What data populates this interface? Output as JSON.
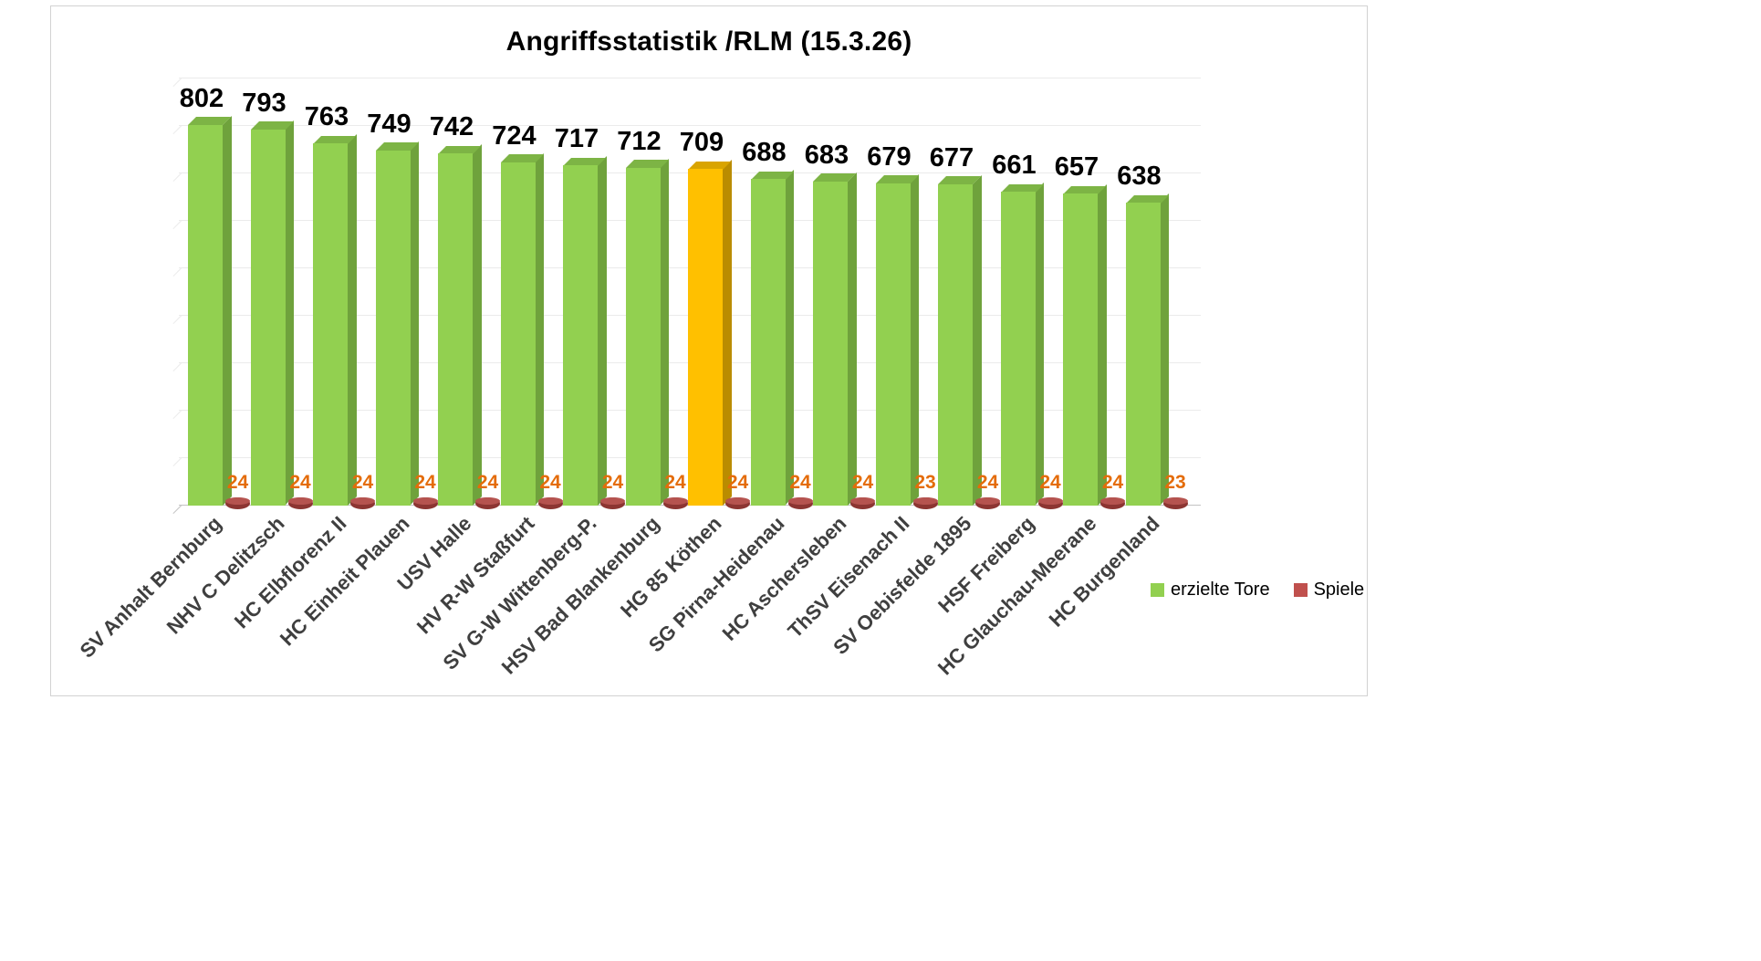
{
  "title": "Angriffsstatistik /RLM (15.3.26)",
  "legend": [
    {
      "label": "erzielte Tore",
      "color": "#92D050"
    },
    {
      "label": "Spiele",
      "color": "#C0504D"
    }
  ],
  "chart_data": {
    "type": "bar",
    "style": "3d-column",
    "title": "Angriffsstatistik /RLM (15.3.26)",
    "categories": [
      "SV Anhalt Bernburg",
      "NHV C Delitzsch",
      "HC Elbflorenz II",
      "HC Einheit Plauen",
      "USV Halle",
      "HV R-W Staßfurt",
      "SV G-W Wittenberg-P.",
      "HSV Bad Blankenburg",
      "HG 85 Köthen",
      "SG Pirna-Heidenau",
      "HC Aschersleben",
      "ThSV Eisenach II",
      "SV Oebisfelde 1895",
      "HSF Freiberg",
      "HC Glauchau-Meerane",
      "HC Burgenland"
    ],
    "series": [
      {
        "name": "erzielte Tore",
        "color": "#92D050",
        "values": [
          802,
          793,
          763,
          749,
          742,
          724,
          717,
          712,
          709,
          688,
          683,
          679,
          677,
          661,
          657,
          638
        ]
      },
      {
        "name": "Spiele",
        "color": "#C0504D",
        "values": [
          24,
          24,
          24,
          24,
          24,
          24,
          24,
          24,
          24,
          24,
          24,
          23,
          24,
          24,
          24,
          23
        ]
      }
    ],
    "highlight_index": 8,
    "highlight_color": "#FFC000",
    "xlabel": "",
    "ylabel": "",
    "ylim": [
      0,
      900
    ],
    "ytick_step": 100,
    "grid": true,
    "legend_position": "right",
    "colors": {
      "bar_front": "#92D050",
      "bar_side": "#6FA23C",
      "bar_top": "#7DB445",
      "highlight_front": "#FFC000",
      "highlight_side": "#BA8C00",
      "highlight_top": "#D9A400",
      "disc_top": "#B5534F",
      "disc_body": "#8C3532",
      "value_label": "#000000",
      "games_label": "#E46C0A",
      "category_label": "#3F3F3F"
    }
  }
}
